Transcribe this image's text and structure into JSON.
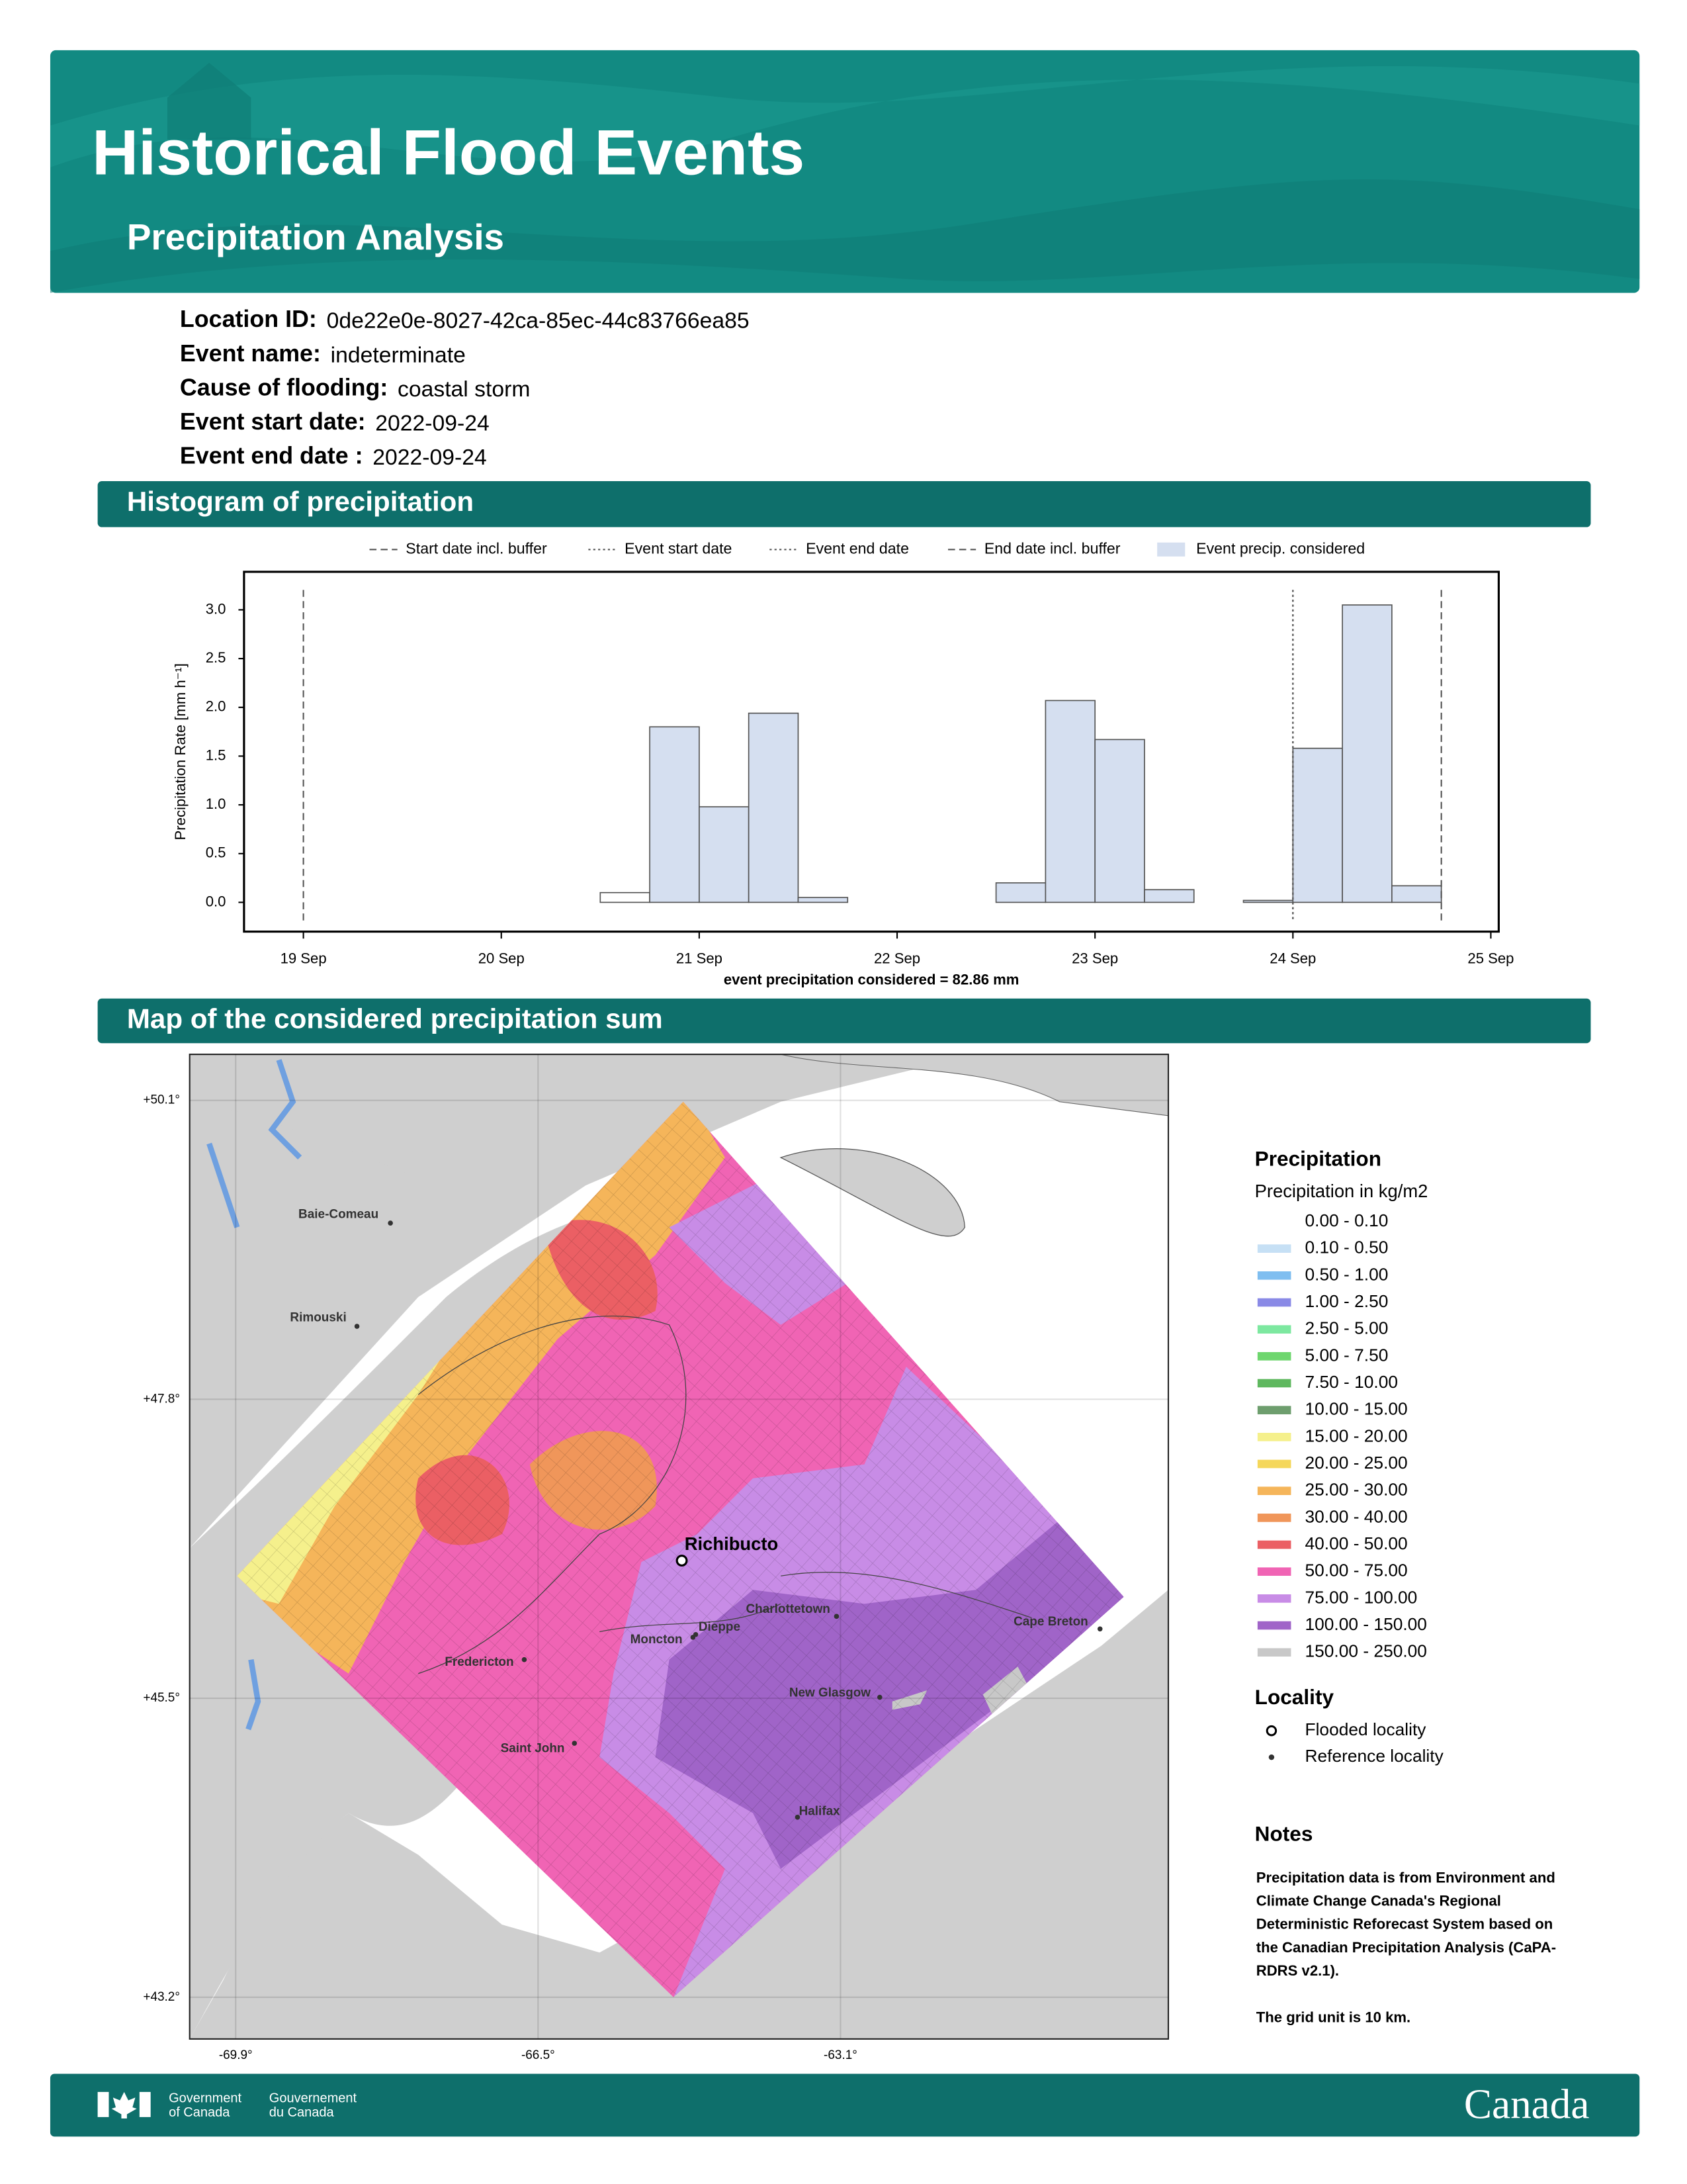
{
  "header": {
    "title": "Historical Flood Events",
    "subtitle": "Precipitation Analysis"
  },
  "info": [
    {
      "label": "Location ID:",
      "value": "0de22e0e-8027-42ca-85ec-44c83766ea85"
    },
    {
      "label": "Event name:",
      "value": "indeterminate"
    },
    {
      "label": "Cause of flooding:",
      "value": "coastal storm"
    },
    {
      "label": "Event start date:",
      "value": "2022-09-24"
    },
    {
      "label": "Event end date :",
      "value": "2022-09-24"
    }
  ],
  "chart_data": {
    "type": "histogram",
    "title": "Histogram of precipitation",
    "ylabel": "Precipitation Rate [mm h⁻¹]",
    "annotation": "event precipitation considered = 82.86 mm",
    "bins": [
      19,
      19.25,
      19.5,
      19.75,
      20,
      20.25,
      20.5,
      20.75,
      21,
      21.25,
      21.5,
      21.75,
      22,
      22.25,
      22.5,
      22.75,
      23,
      23.25,
      23.5,
      23.75,
      24,
      24.25,
      24.5,
      24.75
    ],
    "values": [
      0,
      0,
      0,
      0,
      0,
      0,
      0.1,
      1.8,
      0.98,
      1.94,
      0.05,
      0,
      0,
      0,
      0.2,
      2.07,
      1.67,
      0.13,
      0,
      0.02,
      1.58,
      3.05,
      0.17
    ],
    "color": "#d5dff0",
    "xlim": [
      18.7,
      25.04
    ],
    "xticks": [
      {
        "value": 19,
        "label": "19 Sep"
      },
      {
        "value": 20,
        "label": "20 Sep"
      },
      {
        "value": 21,
        "label": "21 Sep"
      },
      {
        "value": 22,
        "label": "22 Sep"
      },
      {
        "value": 23,
        "label": "23 Sep"
      },
      {
        "value": 24,
        "label": "24 Sep"
      },
      {
        "value": 25,
        "label": "25 Sep"
      }
    ],
    "ylim": [
      -0.3,
      3.39
    ],
    "yticks": [
      {
        "value": 0,
        "label": "0.0"
      },
      {
        "value": 0.5,
        "label": "0.5"
      },
      {
        "value": 1,
        "label": "1.0"
      },
      {
        "value": 1.5,
        "label": "1.5"
      },
      {
        "value": 2,
        "label": "2.0"
      },
      {
        "value": 2.5,
        "label": "2.5"
      },
      {
        "value": 3,
        "label": "3.0"
      }
    ],
    "lines": [
      {
        "name": "Start date incl. buffer",
        "x": 19,
        "style": "dashed"
      },
      {
        "name": "Event start date",
        "x": 24,
        "style": "dotted"
      },
      {
        "name": "Event end date",
        "x": 24,
        "style": "dotted"
      },
      {
        "name": "End date incl. buffer",
        "x": 24.75,
        "style": "dashed"
      }
    ],
    "shade": {
      "name": "Event precip. considered",
      "range": [
        20.75,
        24.75
      ]
    }
  },
  "map": {
    "title": "Map of the considered precipitation sum",
    "lat_ticks": [
      {
        "value": 50.1,
        "label": "+50.1°"
      },
      {
        "value": 47.8,
        "label": "+47.8°"
      },
      {
        "value": 45.5,
        "label": "+45.5°"
      },
      {
        "value": 43.2,
        "label": "+43.2°"
      }
    ],
    "lon_ticks": [
      {
        "value": -69.9,
        "label": "-69.9°"
      },
      {
        "value": -66.5,
        "label": "-66.5°"
      },
      {
        "value": -63.1,
        "label": "-63.1°"
      }
    ],
    "localities": [
      "Baie-Comeau",
      "Rimouski",
      "Richibucto",
      "Charlottetown",
      "Dieppe",
      "Moncton",
      "Fredericton",
      "New Glasgow",
      "Cape Breton",
      "Saint John",
      "Halifax"
    ],
    "legend_title": "Precipitation",
    "legend_subtitle": "Precipitation in kg/m2",
    "legend": [
      {
        "label": "0.00 - 0.10",
        "color": "#ffffff"
      },
      {
        "label": "0.10 - 0.50",
        "color": "#c6e0f5"
      },
      {
        "label": "0.50 - 1.00",
        "color": "#7fbef0"
      },
      {
        "label": "1.00 - 2.50",
        "color": "#8a8ae6"
      },
      {
        "label": "2.50 - 5.00",
        "color": "#7de8a0"
      },
      {
        "label": "5.00 - 7.50",
        "color": "#6ed66e"
      },
      {
        "label": "7.50 - 10.00",
        "color": "#5fb85f"
      },
      {
        "label": "10.00 - 15.00",
        "color": "#6e9e6e"
      },
      {
        "label": "15.00 - 20.00",
        "color": "#f5f08c"
      },
      {
        "label": "20.00 - 25.00",
        "color": "#f5d75a"
      },
      {
        "label": "25.00 - 30.00",
        "color": "#f5b55a"
      },
      {
        "label": "30.00 - 40.00",
        "color": "#f0965a"
      },
      {
        "label": "40.00 - 50.00",
        "color": "#eb5f64"
      },
      {
        "label": "50.00 - 75.00",
        "color": "#f064b4"
      },
      {
        "label": "75.00 - 100.00",
        "color": "#c88ce6"
      },
      {
        "label": "100.00 - 150.00",
        "color": "#a064c8"
      },
      {
        "label": "150.00 - 250.00",
        "color": "#c8c8c8"
      }
    ],
    "locality_title": "Locality",
    "locality_legend": [
      "Flooded locality",
      "Reference locality"
    ]
  },
  "notes": {
    "title": "Notes",
    "lines": [
      "Precipitation data is from Environment and",
      "Climate Change Canada's Regional",
      "Deterministic Reforecast System based on",
      "the Canadian Precipitation Analysis (CaPA-",
      "RDRS v2.1).",
      "",
      "The grid unit is 10 km."
    ]
  },
  "footer": {
    "gov_en": [
      "Government",
      "of Canada"
    ],
    "gov_fr": [
      "Gouvernement",
      "du Canada"
    ],
    "wordmark": "Canada"
  }
}
